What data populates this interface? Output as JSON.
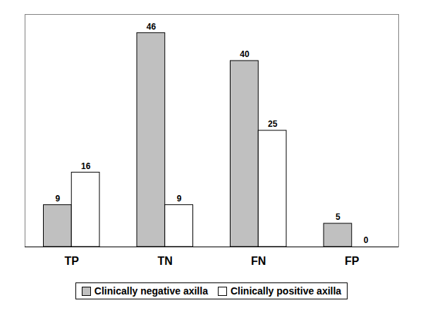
{
  "chart_data": {
    "type": "bar",
    "categories": [
      "TP",
      "TN",
      "FN",
      "FP"
    ],
    "series": [
      {
        "name": "Clinically negative axilla",
        "color": "#c0c0c0",
        "values": [
          9,
          46,
          40,
          5
        ]
      },
      {
        "name": "Clinically positive axilla",
        "color": "#ffffff",
        "values": [
          16,
          9,
          25,
          0
        ]
      }
    ],
    "ylim": [
      0,
      50
    ],
    "data_labels": true,
    "tick_labels": "x",
    "legend": "bottom"
  }
}
